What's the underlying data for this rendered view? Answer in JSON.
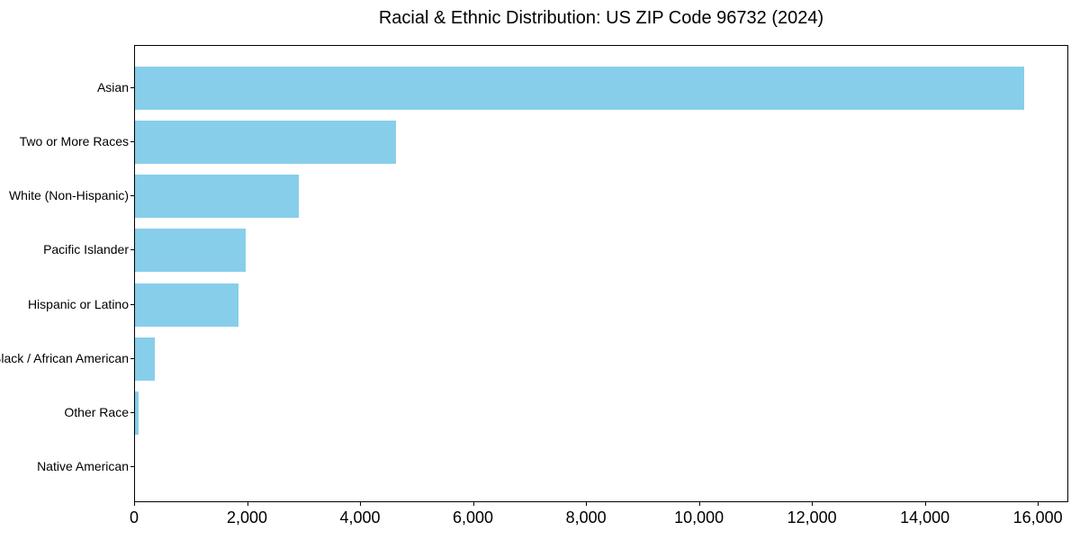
{
  "title": "Racial & Ethnic Distribution: US ZIP Code 96732 (2024)",
  "chart_data": {
    "type": "bar",
    "orientation": "horizontal",
    "title": "Racial & Ethnic Distribution: US ZIP Code 96732 (2024)",
    "categories": [
      "Asian",
      "Two or More Races",
      "White (Non-Hispanic)",
      "Pacific Islander",
      "Hispanic or Latino",
      "Black / African American",
      "Other Race",
      "Native American"
    ],
    "values": [
      15740,
      4620,
      2900,
      1960,
      1830,
      350,
      60,
      0
    ],
    "xlabel": "",
    "ylabel": "",
    "xlim": [
      0,
      16540
    ],
    "xticks": [
      0,
      2000,
      4000,
      6000,
      8000,
      10000,
      12000,
      14000,
      16000
    ],
    "bar_color": "#87CEEB",
    "axis_color": "#000000",
    "text_color": "#000000",
    "background_color": "#ffffff",
    "grid": false,
    "legend": "none"
  }
}
